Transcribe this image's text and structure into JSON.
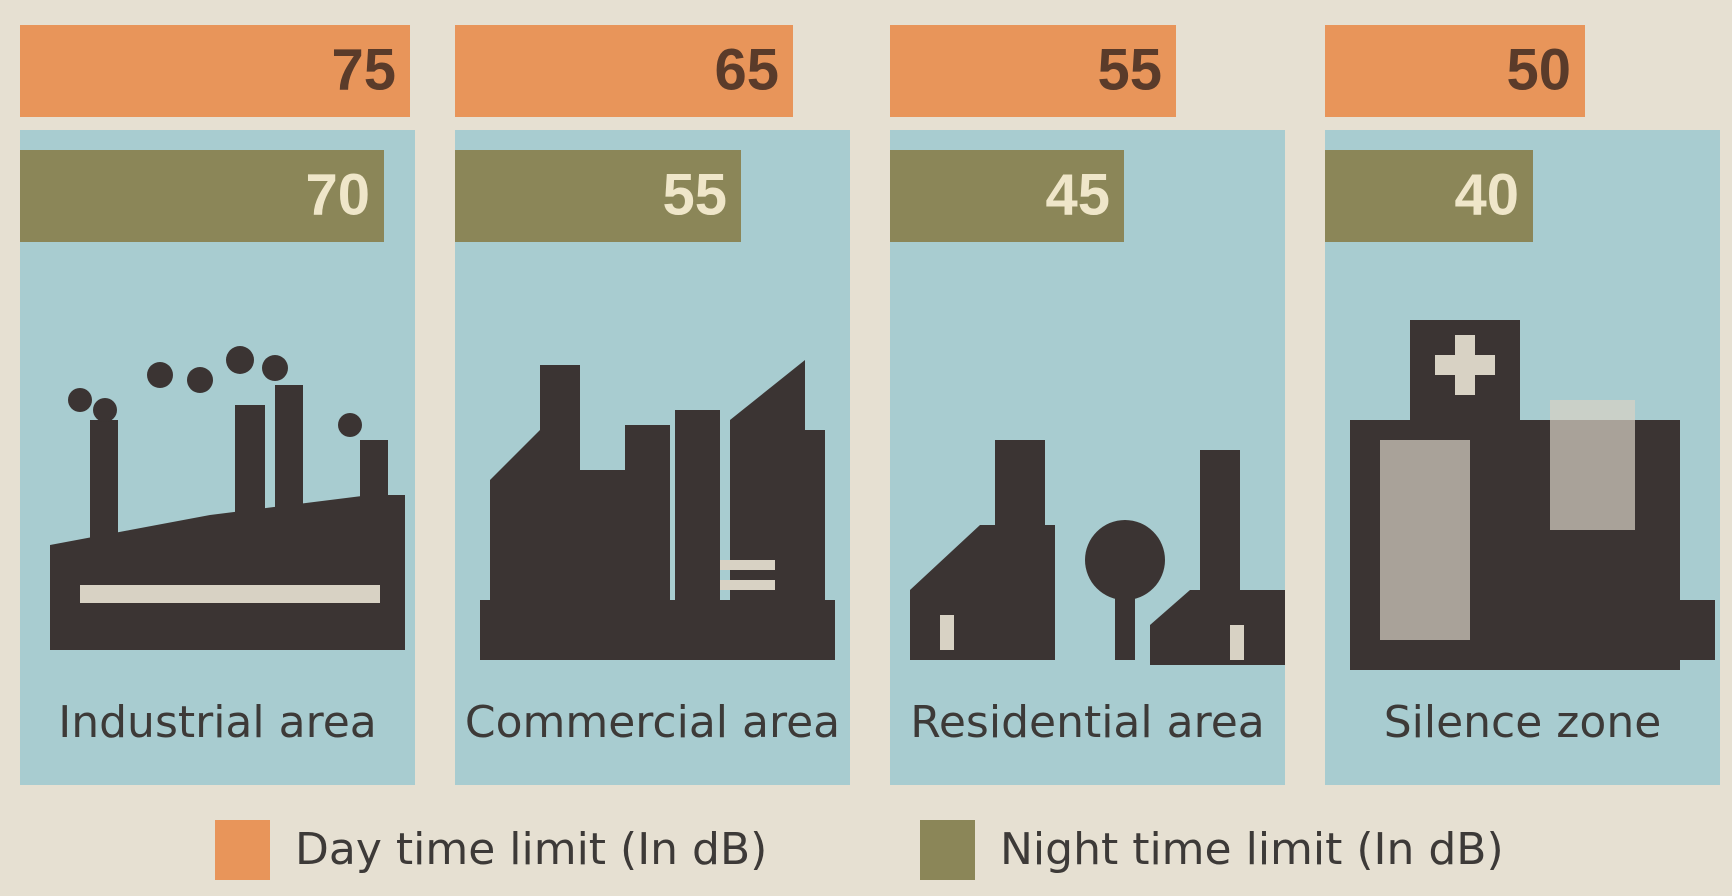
{
  "chart_data": {
    "type": "bar",
    "categories": [
      "Industrial area",
      "Commercial area",
      "Residential area",
      "Silence zone"
    ],
    "series": [
      {
        "name": "Day time limit (In dB)",
        "color": "#e8955a",
        "values": [
          75,
          65,
          55,
          50
        ]
      },
      {
        "name": "Night time limit (In dB)",
        "color": "#8b8658",
        "values": [
          70,
          55,
          45,
          40
        ]
      }
    ]
  }
}
